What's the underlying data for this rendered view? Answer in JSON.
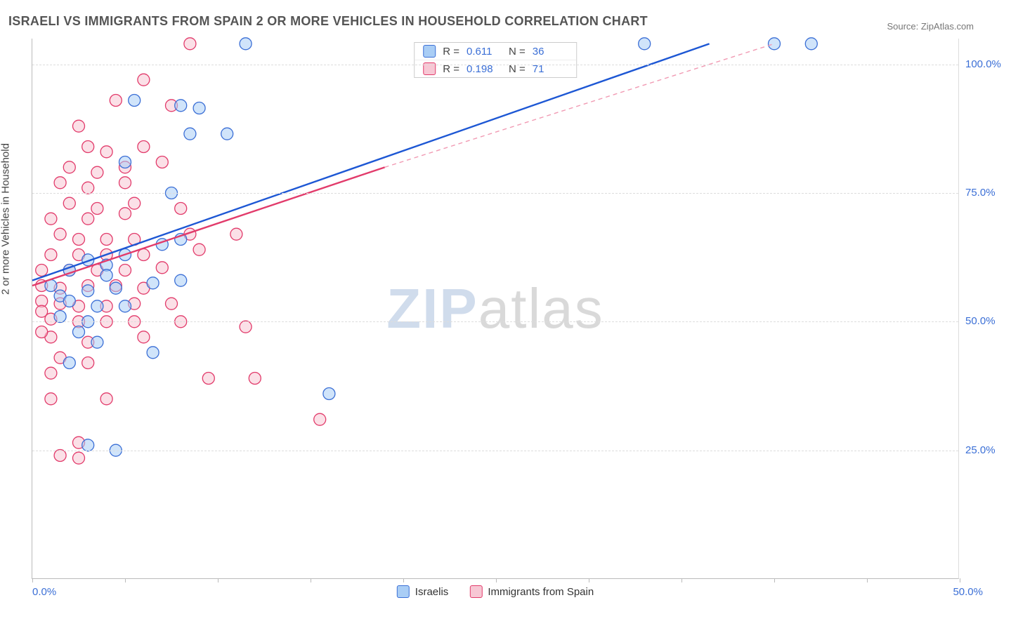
{
  "title": "ISRAELI VS IMMIGRANTS FROM SPAIN 2 OR MORE VEHICLES IN HOUSEHOLD CORRELATION CHART",
  "source": "Source: ZipAtlas.com",
  "watermark": {
    "left": "ZIP",
    "right": "atlas"
  },
  "axes": {
    "ylabel": "2 or more Vehicles in Household",
    "x_min": 0,
    "x_max": 50,
    "y_min": 0,
    "y_max": 105,
    "y_ticks": [
      25,
      50,
      75,
      100
    ],
    "y_tick_labels": [
      "25.0%",
      "50.0%",
      "75.0%",
      "100.0%"
    ],
    "x_tick_positions": [
      0,
      5,
      10,
      15,
      20,
      25,
      30,
      35,
      40,
      45,
      50
    ],
    "x_left_label": "0.0%",
    "x_right_label": "50.0%",
    "tick_label_color": "#3b6fd6",
    "grid_color": "#dddddd",
    "axis_color": "#bbbbbb"
  },
  "stats_box": {
    "rows": [
      {
        "swatch_fill": "#a9cdf5",
        "swatch_stroke": "#3b6fd6",
        "r_label": "R =",
        "r_value": "0.611",
        "n_label": "N =",
        "n_value": "36",
        "value_color": "#3b6fd6"
      },
      {
        "swatch_fill": "#f7c7d4",
        "swatch_stroke": "#e23b6b",
        "r_label": "R =",
        "r_value": "0.198",
        "n_label": "N =",
        "n_value": "71",
        "value_color": "#3b6fd6"
      }
    ]
  },
  "bottom_legend": [
    {
      "swatch_fill": "#a9cdf5",
      "swatch_stroke": "#3b6fd6",
      "label": "Israelis"
    },
    {
      "swatch_fill": "#f7c7d4",
      "swatch_stroke": "#e23b6b",
      "label": "Immigrants from Spain"
    }
  ],
  "series": {
    "blue": {
      "marker_fill": "#a9cdf5",
      "marker_stroke": "#3b6fd6",
      "marker_fill_opacity": 0.55,
      "marker_r": 8.5,
      "line_color": "#1d57d4",
      "line_width": 2.4,
      "dash_color": "#6c97e8",
      "regression_solid": [
        [
          0,
          58
        ],
        [
          36.5,
          104
        ]
      ],
      "regression_dashed": null,
      "points": [
        [
          11.5,
          104
        ],
        [
          33,
          104
        ],
        [
          40,
          104
        ],
        [
          42,
          104
        ],
        [
          5.5,
          93
        ],
        [
          8,
          92
        ],
        [
          9,
          91.5
        ],
        [
          8.5,
          86.5
        ],
        [
          10.5,
          86.5
        ],
        [
          5,
          81
        ],
        [
          7.5,
          75
        ],
        [
          5,
          63
        ],
        [
          7,
          65
        ],
        [
          8,
          66
        ],
        [
          3,
          62
        ],
        [
          4,
          61
        ],
        [
          6.5,
          57.5
        ],
        [
          8,
          58
        ],
        [
          1.5,
          55
        ],
        [
          3,
          56
        ],
        [
          4.5,
          56.5
        ],
        [
          2,
          54
        ],
        [
          3.5,
          53
        ],
        [
          5,
          53
        ],
        [
          1.5,
          51
        ],
        [
          3,
          50
        ],
        [
          2.5,
          48
        ],
        [
          3.5,
          46
        ],
        [
          2,
          42
        ],
        [
          6.5,
          44
        ],
        [
          16,
          36
        ],
        [
          3,
          26
        ],
        [
          4.5,
          25
        ],
        [
          2,
          60
        ],
        [
          4,
          59
        ],
        [
          1,
          57
        ]
      ]
    },
    "pink": {
      "marker_fill": "#f7c7d4",
      "marker_stroke": "#e23b6b",
      "marker_fill_opacity": 0.55,
      "marker_r": 8.5,
      "line_color": "#e23b6b",
      "line_width": 2.4,
      "dash_color": "#f19ab3",
      "regression_solid": [
        [
          0,
          57
        ],
        [
          19,
          80
        ]
      ],
      "regression_dashed": [
        [
          19,
          80
        ],
        [
          40,
          104
        ]
      ],
      "points": [
        [
          8.5,
          104
        ],
        [
          6,
          97
        ],
        [
          4.5,
          93
        ],
        [
          7.5,
          92
        ],
        [
          2.5,
          88
        ],
        [
          3,
          84
        ],
        [
          4,
          83
        ],
        [
          6,
          84
        ],
        [
          2,
          80
        ],
        [
          3.5,
          79
        ],
        [
          5,
          80
        ],
        [
          7,
          81
        ],
        [
          1.5,
          77
        ],
        [
          3,
          76
        ],
        [
          5,
          77
        ],
        [
          2,
          73
        ],
        [
          3.5,
          72
        ],
        [
          5.5,
          73
        ],
        [
          8,
          72
        ],
        [
          1,
          70
        ],
        [
          3,
          70
        ],
        [
          5,
          71
        ],
        [
          1.5,
          67
        ],
        [
          2.5,
          66
        ],
        [
          4,
          66
        ],
        [
          5.5,
          66
        ],
        [
          8.5,
          67
        ],
        [
          11,
          67
        ],
        [
          1,
          63
        ],
        [
          2.5,
          63
        ],
        [
          4,
          63
        ],
        [
          6,
          63
        ],
        [
          9,
          64
        ],
        [
          0.5,
          60
        ],
        [
          2,
          60
        ],
        [
          3.5,
          60
        ],
        [
          5,
          60
        ],
        [
          7,
          60.5
        ],
        [
          0.5,
          57
        ],
        [
          1.5,
          56.5
        ],
        [
          3,
          57
        ],
        [
          4.5,
          57
        ],
        [
          6,
          56.5
        ],
        [
          0.5,
          54
        ],
        [
          1.5,
          53.5
        ],
        [
          2.5,
          53
        ],
        [
          4,
          53
        ],
        [
          5.5,
          53.5
        ],
        [
          7.5,
          53.5
        ],
        [
          1,
          50.5
        ],
        [
          2.5,
          50
        ],
        [
          4,
          50
        ],
        [
          5.5,
          50
        ],
        [
          8,
          50
        ],
        [
          11.5,
          49
        ],
        [
          1,
          47
        ],
        [
          3,
          46
        ],
        [
          6,
          47
        ],
        [
          1.5,
          43
        ],
        [
          3,
          42
        ],
        [
          1,
          40
        ],
        [
          9.5,
          39
        ],
        [
          12,
          39
        ],
        [
          1,
          35
        ],
        [
          4,
          35
        ],
        [
          15.5,
          31
        ],
        [
          2.5,
          26.5
        ],
        [
          1.5,
          24
        ],
        [
          2.5,
          23.5
        ],
        [
          0.5,
          52
        ],
        [
          0.5,
          48
        ]
      ]
    }
  }
}
